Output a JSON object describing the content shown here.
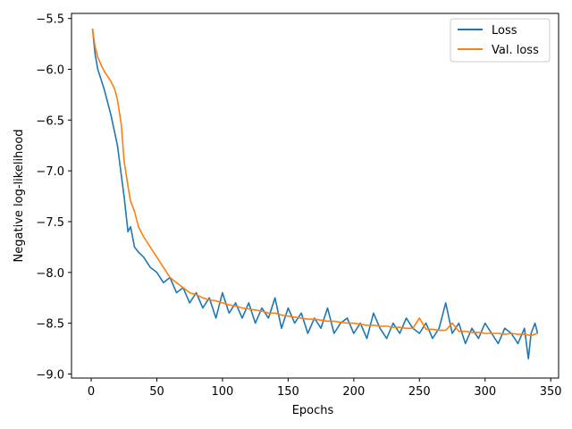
{
  "chart_data": {
    "type": "line",
    "title": "",
    "xlabel": "Epochs",
    "ylabel": "Negative log-likelihood",
    "xlim": [
      -15,
      356
    ],
    "ylim": [
      -9.04,
      -5.45
    ],
    "xticks": [
      0,
      50,
      100,
      150,
      200,
      250,
      300,
      350
    ],
    "yticks": [
      -5.5,
      -6.0,
      -6.5,
      -7.0,
      -7.5,
      -8.0,
      -8.5,
      -9.0
    ],
    "xtick_labels": [
      "0",
      "50",
      "100",
      "150",
      "200",
      "250",
      "300",
      "350"
    ],
    "ytick_labels": [
      "−5.5",
      "−6.0",
      "−6.5",
      "−7.0",
      "−7.5",
      "−8.0",
      "−8.5",
      "−9.0"
    ],
    "grid": false,
    "legend_position": "top-right",
    "series": [
      {
        "name": "Loss",
        "color": "#1f77b4",
        "x": [
          1,
          3,
          5,
          8,
          10,
          15,
          20,
          25,
          28,
          30,
          33,
          36,
          40,
          45,
          50,
          55,
          60,
          65,
          70,
          75,
          80,
          85,
          90,
          95,
          100,
          105,
          110,
          115,
          120,
          125,
          130,
          135,
          140,
          145,
          150,
          155,
          160,
          165,
          170,
          175,
          180,
          185,
          190,
          195,
          200,
          205,
          210,
          215,
          220,
          225,
          230,
          235,
          240,
          245,
          250,
          255,
          260,
          265,
          270,
          275,
          280,
          285,
          290,
          295,
          300,
          305,
          310,
          315,
          320,
          325,
          330,
          333,
          335,
          338,
          340
        ],
        "values": [
          -5.6,
          -5.85,
          -6.0,
          -6.12,
          -6.2,
          -6.45,
          -6.75,
          -7.25,
          -7.6,
          -7.55,
          -7.75,
          -7.8,
          -7.85,
          -7.95,
          -8.0,
          -8.1,
          -8.05,
          -8.2,
          -8.15,
          -8.3,
          -8.2,
          -8.35,
          -8.25,
          -8.45,
          -8.2,
          -8.4,
          -8.3,
          -8.45,
          -8.3,
          -8.5,
          -8.35,
          -8.45,
          -8.25,
          -8.55,
          -8.35,
          -8.5,
          -8.4,
          -8.6,
          -8.45,
          -8.55,
          -8.35,
          -8.6,
          -8.5,
          -8.45,
          -8.6,
          -8.5,
          -8.65,
          -8.4,
          -8.55,
          -8.65,
          -8.5,
          -8.6,
          -8.45,
          -8.55,
          -8.6,
          -8.5,
          -8.65,
          -8.55,
          -8.3,
          -8.6,
          -8.5,
          -8.7,
          -8.55,
          -8.65,
          -8.5,
          -8.6,
          -8.7,
          -8.55,
          -8.6,
          -8.7,
          -8.55,
          -8.85,
          -8.6,
          -8.5,
          -8.6
        ]
      },
      {
        "name": "Val. loss",
        "color": "#ff7f0e",
        "x": [
          1,
          3,
          5,
          8,
          10,
          15,
          18,
          20,
          23,
          25,
          28,
          30,
          33,
          36,
          40,
          45,
          50,
          55,
          60,
          65,
          70,
          75,
          80,
          85,
          90,
          95,
          100,
          105,
          110,
          115,
          120,
          125,
          130,
          135,
          140,
          145,
          150,
          155,
          160,
          165,
          170,
          175,
          180,
          185,
          190,
          195,
          200,
          205,
          210,
          215,
          220,
          225,
          230,
          235,
          240,
          245,
          250,
          255,
          260,
          265,
          270,
          275,
          280,
          285,
          290,
          295,
          300,
          305,
          310,
          315,
          320,
          325,
          330,
          335,
          340
        ],
        "values": [
          -5.6,
          -5.78,
          -5.88,
          -5.97,
          -6.02,
          -6.12,
          -6.2,
          -6.3,
          -6.55,
          -6.9,
          -7.15,
          -7.3,
          -7.4,
          -7.55,
          -7.65,
          -7.75,
          -7.85,
          -7.95,
          -8.05,
          -8.1,
          -8.15,
          -8.2,
          -8.22,
          -8.25,
          -8.27,
          -8.28,
          -8.3,
          -8.32,
          -8.33,
          -8.35,
          -8.36,
          -8.37,
          -8.38,
          -8.4,
          -8.4,
          -8.42,
          -8.43,
          -8.44,
          -8.45,
          -8.46,
          -8.46,
          -8.47,
          -8.48,
          -8.48,
          -8.49,
          -8.5,
          -8.5,
          -8.51,
          -8.52,
          -8.52,
          -8.53,
          -8.53,
          -8.54,
          -8.54,
          -8.55,
          -8.55,
          -8.45,
          -8.56,
          -8.56,
          -8.57,
          -8.57,
          -8.5,
          -8.58,
          -8.58,
          -8.59,
          -8.59,
          -8.6,
          -8.6,
          -8.6,
          -8.61,
          -8.6,
          -8.61,
          -8.61,
          -8.62,
          -8.6
        ]
      }
    ]
  }
}
